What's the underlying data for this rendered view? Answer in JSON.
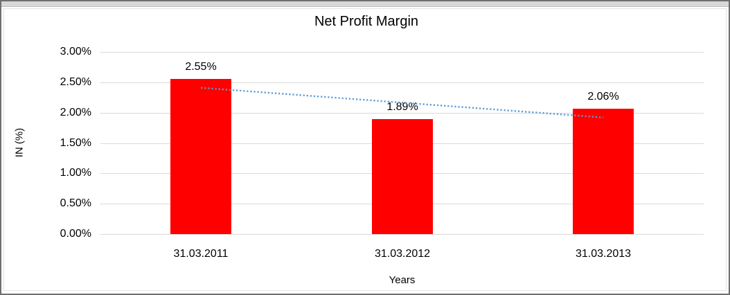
{
  "chart_data": {
    "type": "bar",
    "title": "Net Profit Margin",
    "xlabel": "Years",
    "ylabel": "IN (%)",
    "categories": [
      "31.03.2011",
      "31.03.2012",
      "31.03.2013"
    ],
    "values": [
      2.55,
      1.89,
      2.06
    ],
    "value_labels": [
      "2.55%",
      "1.89%",
      "2.06%"
    ],
    "ylim": [
      0,
      3
    ],
    "ytick_step": 0.5,
    "yticks": [
      0,
      0.5,
      1,
      1.5,
      2,
      2.5,
      3
    ],
    "ytick_labels": [
      "0.00%",
      "0.50%",
      "1.00%",
      "1.50%",
      "2.00%",
      "2.50%",
      "3.00%"
    ],
    "grid": true,
    "legend": "none",
    "colors": {
      "bar": "#ff0000",
      "gridline": "#d9d9d9",
      "trendline": "#5b9bd5",
      "text": "#000000",
      "frame_border": "#6e6e6e",
      "top_strip": "#d8d8d8"
    },
    "trendline": {
      "type": "linear",
      "style": "dotted",
      "start_value": 2.41,
      "end_value": 1.92
    }
  }
}
